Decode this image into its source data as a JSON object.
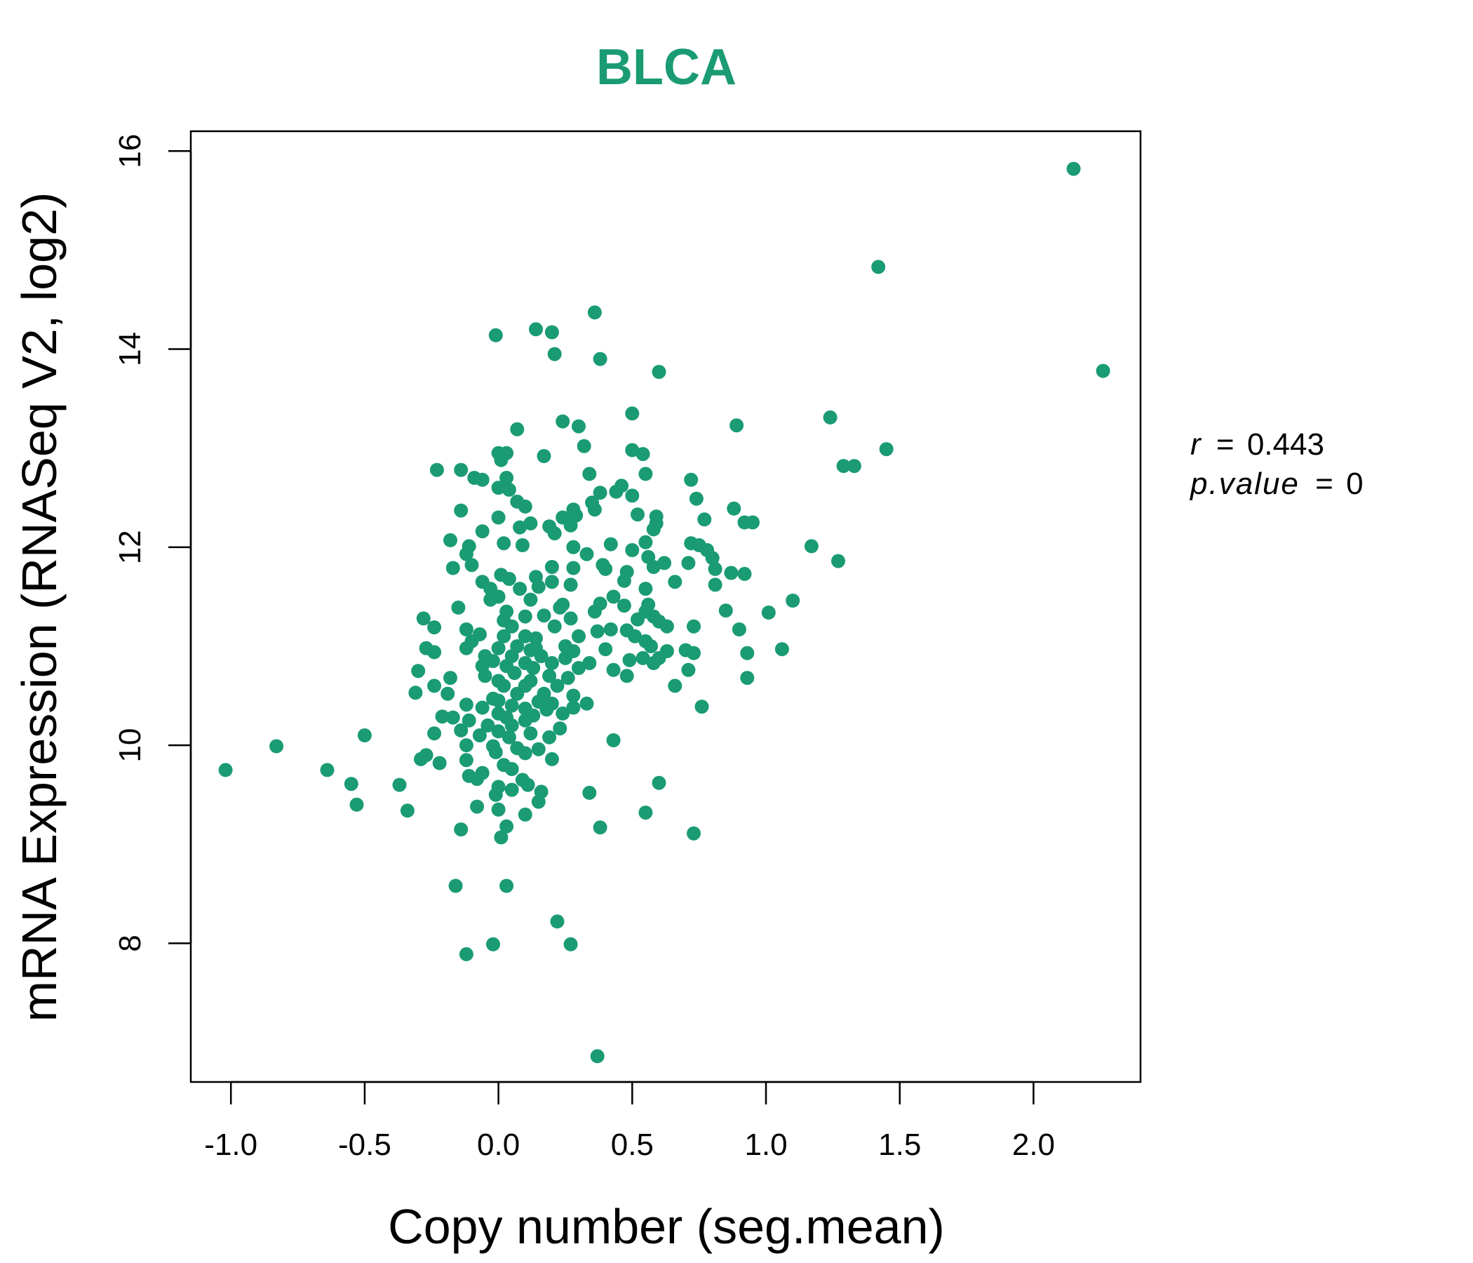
{
  "chart_data": {
    "type": "scatter",
    "title": "BLCA",
    "xlabel": "Copy number (seg.mean)",
    "ylabel": "mRNA Expression (RNASeq V2, log2)",
    "xlim": [
      -1.15,
      2.4
    ],
    "ylim": [
      6.6,
      16.2
    ],
    "x_ticks": [
      -1.0,
      -0.5,
      0.0,
      0.5,
      1.0,
      1.5,
      2.0
    ],
    "x_tick_labels": [
      "-1.0",
      "-0.5",
      "0.0",
      "0.5",
      "1.0",
      "1.5",
      "2.0"
    ],
    "y_ticks": [
      8,
      10,
      12,
      14,
      16
    ],
    "y_tick_labels": [
      "8",
      "10",
      "12",
      "14",
      "16"
    ],
    "grid": false,
    "point_color": "#1a9b73",
    "title_color": "#1a9b73",
    "annotations": {
      "r_label": "r",
      "r_value": "0.443",
      "p_label": "p.value",
      "p_value": "0"
    },
    "points": [
      [
        2.15,
        15.82
      ],
      [
        1.42,
        14.83
      ],
      [
        2.26,
        13.78
      ],
      [
        0.36,
        14.37
      ],
      [
        0.14,
        14.2
      ],
      [
        0.2,
        14.17
      ],
      [
        -0.01,
        14.14
      ],
      [
        0.21,
        13.95
      ],
      [
        0.38,
        13.9
      ],
      [
        0.6,
        13.77
      ],
      [
        0.5,
        13.35
      ],
      [
        1.24,
        13.31
      ],
      [
        0.89,
        13.23
      ],
      [
        0.24,
        13.27
      ],
      [
        0.3,
        13.22
      ],
      [
        0.07,
        13.19
      ],
      [
        1.45,
        12.99
      ],
      [
        0.32,
        13.02
      ],
      [
        0.5,
        12.98
      ],
      [
        0.54,
        12.94
      ],
      [
        0.17,
        12.92
      ],
      [
        0.0,
        12.95
      ],
      [
        0.03,
        12.95
      ],
      [
        0.01,
        12.88
      ],
      [
        -0.23,
        12.78
      ],
      [
        -0.14,
        12.78
      ],
      [
        1.29,
        12.82
      ],
      [
        1.33,
        12.82
      ],
      [
        0.34,
        12.74
      ],
      [
        0.55,
        12.74
      ],
      [
        0.72,
        12.68
      ],
      [
        -0.09,
        12.7
      ],
      [
        -0.06,
        12.68
      ],
      [
        0.03,
        12.7
      ],
      [
        0.46,
        12.62
      ],
      [
        0.0,
        12.6
      ],
      [
        0.04,
        12.58
      ],
      [
        0.38,
        12.55
      ],
      [
        0.44,
        12.56
      ],
      [
        0.5,
        12.52
      ],
      [
        0.74,
        12.49
      ],
      [
        0.07,
        12.46
      ],
      [
        0.1,
        12.41
      ],
      [
        0.35,
        12.45
      ],
      [
        0.36,
        12.38
      ],
      [
        0.28,
        12.38
      ],
      [
        -0.14,
        12.37
      ],
      [
        0.88,
        12.39
      ],
      [
        0.29,
        12.32
      ],
      [
        0.24,
        12.3
      ],
      [
        0.0,
        12.3
      ],
      [
        0.52,
        12.33
      ],
      [
        0.59,
        12.31
      ],
      [
        0.77,
        12.28
      ],
      [
        0.92,
        12.25
      ],
      [
        0.95,
        12.25
      ],
      [
        0.12,
        12.24
      ],
      [
        0.08,
        12.2
      ],
      [
        0.27,
        12.22
      ],
      [
        0.19,
        12.21
      ],
      [
        0.59,
        12.24
      ],
      [
        0.58,
        12.18
      ],
      [
        -0.06,
        12.16
      ],
      [
        0.21,
        12.14
      ],
      [
        -0.18,
        12.07
      ],
      [
        0.02,
        12.04
      ],
      [
        0.09,
        12.02
      ],
      [
        0.42,
        12.03
      ],
      [
        0.55,
        12.05
      ],
      [
        0.72,
        12.04
      ],
      [
        0.75,
        12.02
      ],
      [
        1.17,
        12.01
      ],
      [
        -0.11,
        12.01
      ],
      [
        0.28,
        12.0
      ],
      [
        0.5,
        11.97
      ],
      [
        0.78,
        11.97
      ],
      [
        -0.12,
        11.93
      ],
      [
        0.33,
        11.93
      ],
      [
        0.8,
        11.89
      ],
      [
        0.56,
        11.9
      ],
      [
        1.27,
        11.86
      ],
      [
        0.62,
        11.84
      ],
      [
        0.71,
        11.84
      ],
      [
        0.39,
        11.82
      ],
      [
        -0.1,
        11.82
      ],
      [
        0.2,
        11.8
      ],
      [
        0.28,
        11.79
      ],
      [
        -0.17,
        11.79
      ],
      [
        0.4,
        11.78
      ],
      [
        0.48,
        11.75
      ],
      [
        0.58,
        11.8
      ],
      [
        0.87,
        11.74
      ],
      [
        0.92,
        11.73
      ],
      [
        0.81,
        11.78
      ],
      [
        0.01,
        11.72
      ],
      [
        0.14,
        11.7
      ],
      [
        -0.06,
        11.65
      ],
      [
        0.04,
        11.68
      ],
      [
        0.2,
        11.65
      ],
      [
        0.27,
        11.62
      ],
      [
        0.47,
        11.66
      ],
      [
        0.66,
        11.65
      ],
      [
        0.81,
        11.62
      ],
      [
        0.15,
        11.6
      ],
      [
        -0.03,
        11.58
      ],
      [
        0.08,
        11.58
      ],
      [
        0.55,
        11.58
      ],
      [
        0.43,
        11.5
      ],
      [
        0.0,
        11.5
      ],
      [
        -0.03,
        11.47
      ],
      [
        0.12,
        11.47
      ],
      [
        0.24,
        11.42
      ],
      [
        0.38,
        11.43
      ],
      [
        0.47,
        11.41
      ],
      [
        1.1,
        11.46
      ],
      [
        0.56,
        11.42
      ],
      [
        0.23,
        11.39
      ],
      [
        0.85,
        11.36
      ],
      [
        1.01,
        11.34
      ],
      [
        -0.15,
        11.39
      ],
      [
        0.03,
        11.35
      ],
      [
        0.1,
        11.3
      ],
      [
        0.17,
        11.31
      ],
      [
        0.36,
        11.35
      ],
      [
        0.55,
        11.35
      ],
      [
        0.58,
        11.3
      ],
      [
        -0.28,
        11.28
      ],
      [
        0.02,
        11.26
      ],
      [
        0.27,
        11.28
      ],
      [
        0.52,
        11.27
      ],
      [
        0.6,
        11.25
      ],
      [
        0.63,
        11.2
      ],
      [
        0.73,
        11.2
      ],
      [
        -0.24,
        11.19
      ],
      [
        -0.12,
        11.17
      ],
      [
        0.05,
        11.2
      ],
      [
        0.21,
        11.2
      ],
      [
        0.37,
        11.15
      ],
      [
        0.42,
        11.17
      ],
      [
        0.48,
        11.16
      ],
      [
        0.9,
        11.17
      ],
      [
        -0.07,
        11.12
      ],
      [
        0.02,
        11.1
      ],
      [
        0.1,
        11.1
      ],
      [
        0.14,
        11.08
      ],
      [
        0.3,
        11.1
      ],
      [
        0.51,
        11.1
      ],
      [
        0.55,
        11.05
      ],
      [
        -0.1,
        11.05
      ],
      [
        0.07,
        11.0
      ],
      [
        0.14,
        10.98
      ],
      [
        0.25,
        11.0
      ],
      [
        0.57,
        11.0
      ],
      [
        1.06,
        10.97
      ],
      [
        -0.27,
        10.98
      ],
      [
        -0.12,
        10.98
      ],
      [
        0.0,
        10.98
      ],
      [
        0.12,
        10.96
      ],
      [
        0.28,
        10.95
      ],
      [
        0.4,
        10.97
      ],
      [
        0.63,
        10.95
      ],
      [
        0.7,
        10.96
      ],
      [
        0.73,
        10.93
      ],
      [
        0.93,
        10.93
      ],
      [
        -0.24,
        10.94
      ],
      [
        -0.05,
        10.9
      ],
      [
        0.05,
        10.9
      ],
      [
        0.16,
        10.9
      ],
      [
        0.25,
        10.88
      ],
      [
        0.49,
        10.86
      ],
      [
        0.54,
        10.88
      ],
      [
        0.6,
        10.88
      ],
      [
        -0.02,
        10.85
      ],
      [
        0.1,
        10.83
      ],
      [
        0.2,
        10.83
      ],
      [
        0.34,
        10.83
      ],
      [
        0.58,
        10.83
      ],
      [
        -0.06,
        10.8
      ],
      [
        0.03,
        10.8
      ],
      [
        0.13,
        10.78
      ],
      [
        0.3,
        10.78
      ],
      [
        0.43,
        10.76
      ],
      [
        0.71,
        10.76
      ],
      [
        -0.3,
        10.75
      ],
      [
        0.06,
        10.73
      ],
      [
        0.19,
        10.7
      ],
      [
        0.48,
        10.7
      ],
      [
        -0.05,
        10.7
      ],
      [
        -0.18,
        10.68
      ],
      [
        0.0,
        10.65
      ],
      [
        0.12,
        10.65
      ],
      [
        0.26,
        10.68
      ],
      [
        0.93,
        10.68
      ],
      [
        -0.24,
        10.6
      ],
      [
        0.02,
        10.6
      ],
      [
        0.1,
        10.6
      ],
      [
        0.22,
        10.6
      ],
      [
        0.66,
        10.6
      ],
      [
        -0.31,
        10.53
      ],
      [
        -0.19,
        10.52
      ],
      [
        0.07,
        10.52
      ],
      [
        0.17,
        10.52
      ],
      [
        0.28,
        10.5
      ],
      [
        -0.02,
        10.47
      ],
      [
        0.0,
        10.45
      ],
      [
        0.15,
        10.44
      ],
      [
        0.2,
        10.42
      ],
      [
        0.33,
        10.42
      ],
      [
        -0.12,
        10.41
      ],
      [
        0.05,
        10.4
      ],
      [
        0.76,
        10.39
      ],
      [
        0.28,
        10.38
      ],
      [
        -0.06,
        10.38
      ],
      [
        0.1,
        10.37
      ],
      [
        0.18,
        10.36
      ],
      [
        0.0,
        10.32
      ],
      [
        0.24,
        10.32
      ],
      [
        0.13,
        10.3
      ],
      [
        -0.21,
        10.29
      ],
      [
        -0.17,
        10.28
      ],
      [
        0.03,
        10.28
      ],
      [
        -0.11,
        10.25
      ],
      [
        0.1,
        10.25
      ],
      [
        -0.04,
        10.2
      ],
      [
        0.05,
        10.2
      ],
      [
        0.23,
        10.17
      ],
      [
        -0.14,
        10.15
      ],
      [
        0.0,
        10.14
      ],
      [
        0.12,
        10.12
      ],
      [
        -0.24,
        10.12
      ],
      [
        -0.5,
        10.1
      ],
      [
        -0.07,
        10.1
      ],
      [
        0.04,
        10.08
      ],
      [
        0.19,
        10.08
      ],
      [
        0.43,
        10.05
      ],
      [
        -0.12,
        10.0
      ],
      [
        -0.02,
        9.99
      ],
      [
        -0.83,
        9.99
      ],
      [
        0.07,
        9.97
      ],
      [
        0.15,
        9.96
      ],
      [
        -0.01,
        9.93
      ],
      [
        0.1,
        9.92
      ],
      [
        -0.27,
        9.9
      ],
      [
        -0.29,
        9.86
      ],
      [
        0.2,
        9.86
      ],
      [
        -0.12,
        9.85
      ],
      [
        -0.22,
        9.82
      ],
      [
        0.02,
        9.8
      ],
      [
        0.05,
        9.76
      ],
      [
        -1.02,
        9.75
      ],
      [
        -0.64,
        9.75
      ],
      [
        -0.06,
        9.72
      ],
      [
        -0.11,
        9.69
      ],
      [
        -0.08,
        9.66
      ],
      [
        0.09,
        9.65
      ],
      [
        0.11,
        9.6
      ],
      [
        -0.55,
        9.61
      ],
      [
        -0.37,
        9.6
      ],
      [
        0.6,
        9.62
      ],
      [
        0.0,
        9.58
      ],
      [
        0.05,
        9.55
      ],
      [
        0.16,
        9.53
      ],
      [
        0.34,
        9.52
      ],
      [
        -0.01,
        9.5
      ],
      [
        0.15,
        9.43
      ],
      [
        -0.53,
        9.4
      ],
      [
        -0.08,
        9.38
      ],
      [
        0.0,
        9.35
      ],
      [
        -0.34,
        9.34
      ],
      [
        0.55,
        9.32
      ],
      [
        0.1,
        9.3
      ],
      [
        0.03,
        9.18
      ],
      [
        0.38,
        9.17
      ],
      [
        -0.14,
        9.15
      ],
      [
        0.73,
        9.11
      ],
      [
        0.01,
        9.07
      ],
      [
        -0.16,
        8.58
      ],
      [
        0.03,
        8.58
      ],
      [
        0.22,
        8.22
      ],
      [
        -0.02,
        7.99
      ],
      [
        0.27,
        7.99
      ],
      [
        -0.12,
        7.89
      ],
      [
        0.37,
        6.86
      ]
    ]
  }
}
